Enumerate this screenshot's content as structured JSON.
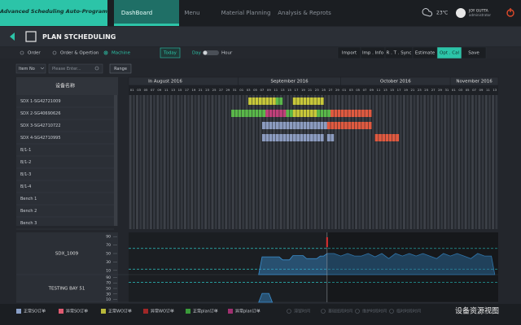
{
  "header": {
    "app_title": "Advanced Scheduling Auto-Program",
    "nav": [
      "DashBoard",
      "Menu",
      "Material Planning",
      "Analysis & Reprots"
    ],
    "weather": "23℃",
    "user_name": "JOY GUTTA",
    "user_role": "administrator"
  },
  "page_title": "PLAN STCHEDULING",
  "toolbar": {
    "views": [
      "Order",
      "Order & Opertion",
      "Machine"
    ],
    "today": "Today",
    "scale_left": "Day",
    "scale_right": "Hour",
    "actions": [
      "Import",
      "Imp . Info",
      "R . T . Sync",
      "Estimate",
      "Opt . Cal",
      "Save"
    ]
  },
  "filter": {
    "field": "Item No",
    "placeholder": "Please Enter...",
    "range": "Range"
  },
  "table": {
    "header": "设备名称",
    "rows": [
      "SDX 1-SG42721009",
      "SDX 2-SG40690626",
      "SDX 3-SG42710722",
      "SDX 4-SG42710995",
      "B/1-1",
      "B/1-2",
      "B/1-3",
      "B/1-4",
      "Bench 1",
      "Bench 2",
      "Bench 3"
    ]
  },
  "timeline": {
    "months": [
      {
        "name": "In August 2016",
        "days": [
          "01",
          "03",
          "05",
          "07",
          "09",
          "11",
          "13",
          "15",
          "17",
          "19",
          "21",
          "23",
          "25",
          "27",
          "29",
          "31"
        ]
      },
      {
        "name": "September 2016",
        "days": [
          "01",
          "03",
          "05",
          "07",
          "09",
          "11",
          "13",
          "15",
          "17",
          "19",
          "21",
          "23",
          "25",
          "27",
          "29"
        ]
      },
      {
        "name": "October 2016",
        "days": [
          "01",
          "03",
          "05",
          "07",
          "09",
          "11",
          "13",
          "15",
          "17",
          "19",
          "21",
          "23",
          "25",
          "27",
          "29",
          "31"
        ]
      },
      {
        "name": "November 2016",
        "days": [
          "01",
          "03",
          "05",
          "07",
          "09",
          "11",
          "13"
        ]
      }
    ],
    "tasks": [
      {
        "row": 0,
        "start": 35,
        "end": 43,
        "color": "#c8c83a"
      },
      {
        "row": 0,
        "start": 43,
        "end": 45,
        "color": "#5ab84a"
      },
      {
        "row": 0,
        "start": 48,
        "end": 57,
        "color": "#c8c83a"
      },
      {
        "row": 1,
        "start": 30,
        "end": 40,
        "color": "#5ab84a"
      },
      {
        "row": 1,
        "start": 40,
        "end": 46,
        "color": "#c0407a"
      },
      {
        "row": 1,
        "start": 46,
        "end": 48,
        "color": "#5ab84a"
      },
      {
        "row": 1,
        "start": 48,
        "end": 55,
        "color": "#c8c83a"
      },
      {
        "row": 1,
        "start": 55,
        "end": 59,
        "color": "#5ab84a"
      },
      {
        "row": 1,
        "start": 59,
        "end": 71,
        "color": "#e05a40"
      },
      {
        "row": 2,
        "start": 39,
        "end": 58,
        "color": "#8c9cc0"
      },
      {
        "row": 2,
        "start": 58,
        "end": 71,
        "color": "#e05a40"
      },
      {
        "row": 3,
        "start": 39,
        "end": 57,
        "color": "#8c9cc0"
      },
      {
        "row": 3,
        "start": 58,
        "end": 60,
        "color": "#8c9cc0"
      },
      {
        "row": 3,
        "start": 72,
        "end": 79,
        "color": "#e05a40"
      }
    ],
    "today": 58
  },
  "load": [
    {
      "name": "SDX_1009",
      "ylim": [
        0,
        100
      ],
      "yticks": [
        90,
        70,
        50,
        30,
        10
      ],
      "thresholds": [
        62,
        13
      ],
      "color": "#3a8fd0",
      "x": [
        38,
        39,
        44,
        45,
        47,
        48,
        51,
        52,
        55,
        56,
        57,
        58,
        60,
        62,
        64,
        66,
        68,
        70,
        72,
        74,
        76,
        78,
        80,
        82,
        84,
        86,
        88,
        90,
        92,
        94,
        96,
        98,
        100,
        102,
        104,
        106,
        107
      ],
      "values": [
        0,
        42,
        42,
        35,
        35,
        45,
        45,
        38,
        38,
        44,
        44,
        50,
        50,
        44,
        50,
        44,
        44,
        50,
        42,
        50,
        38,
        50,
        44,
        50,
        44,
        50,
        44,
        38,
        50,
        44,
        50,
        44,
        38,
        50,
        44,
        44,
        0
      ]
    },
    {
      "name": "TESTING BAY 51",
      "ylim": [
        0,
        100
      ],
      "yticks": [
        90,
        70,
        50,
        30,
        10
      ],
      "thresholds": [
        72
      ],
      "color": "#3a8fd0",
      "x": [
        38,
        39,
        41,
        42
      ],
      "values": [
        0,
        32,
        32,
        0
      ]
    }
  ],
  "legend": [
    {
      "label": "正常SO订单",
      "color": "#8aa0c8"
    },
    {
      "label": "异常SO订单",
      "color": "#e05a70"
    },
    {
      "label": "正常WO订单",
      "color": "#b8b83a"
    },
    {
      "label": "异常WO订单",
      "color": "#a02828"
    },
    {
      "label": "正常plan订单",
      "color": "#3a9a3a"
    },
    {
      "label": "异常plan订单",
      "color": "#a03070"
    }
  ],
  "legend_muted": [
    "滞留时间",
    "基础班段时间",
    "维护时段时间",
    "临时时段时间"
  ],
  "view_name": "设备资源视图"
}
